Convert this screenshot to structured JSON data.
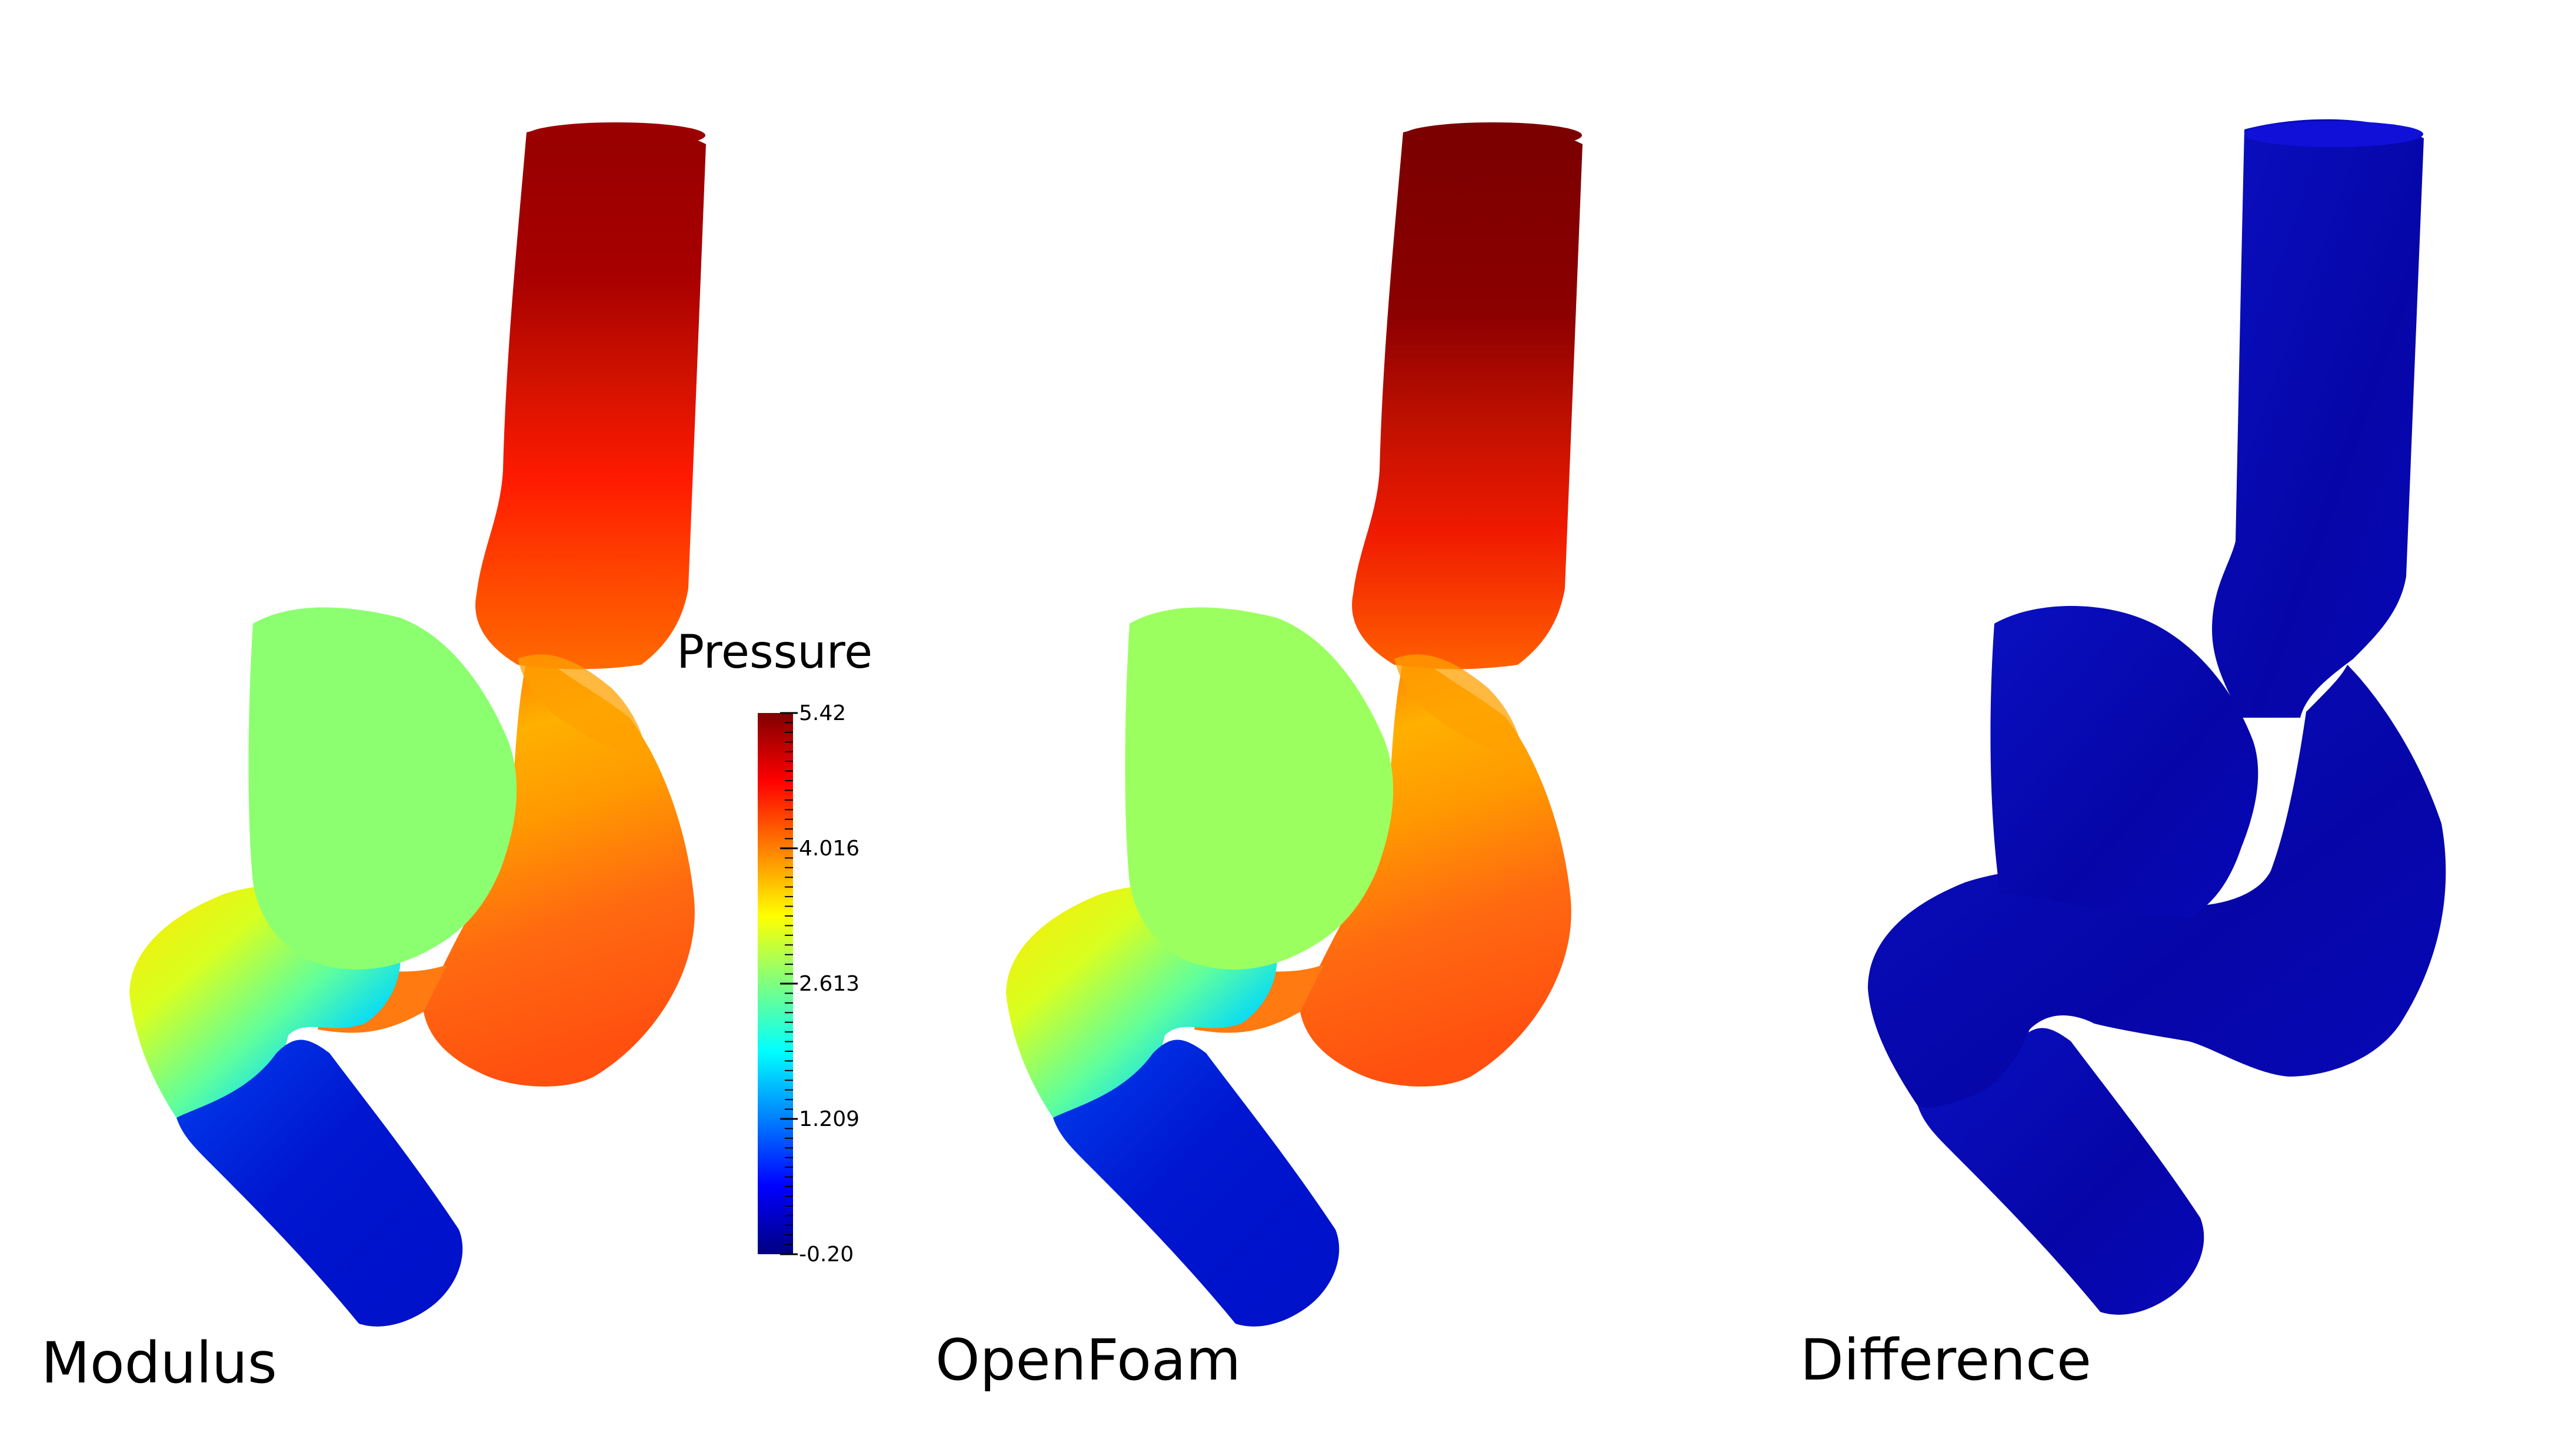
{
  "panels": [
    {
      "label": "Modulus",
      "field": "pressure"
    },
    {
      "label": "OpenFoam",
      "field": "pressure"
    },
    {
      "label": "Difference",
      "field": "difference"
    }
  ],
  "legend": {
    "title": "Pressure",
    "ticks": [
      "5.42",
      "4.016",
      "2.613",
      "1.209",
      "-0.20"
    ],
    "colormap": [
      "#00007f",
      "#0000ff",
      "#007fff",
      "#00ffff",
      "#7fff7f",
      "#ffff00",
      "#ff7f00",
      "#ff0000",
      "#7f0000"
    ]
  },
  "colors": {
    "difference_fill": "#0a0ab4",
    "green_region": "#8cff70",
    "background": "#ffffff"
  }
}
